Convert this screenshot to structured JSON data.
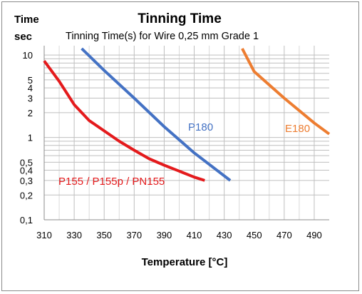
{
  "chart_data": {
    "type": "line",
    "title": "Tinning Time",
    "subtitle": "Tinning Time(s)  for Wire 0,25 mm Grade 1",
    "xlabel": "Temperature [°C]",
    "ylabel_line1": "Time",
    "ylabel_line2": "sec",
    "y_scale": "log",
    "xlim": [
      310,
      500
    ],
    "ylim": [
      0.1,
      13
    ],
    "x_ticks": [
      310,
      330,
      350,
      370,
      390,
      410,
      430,
      450,
      470,
      490
    ],
    "x_tick_labels": [
      "310",
      "330",
      "350",
      "370",
      "390",
      "410",
      "430",
      "450",
      "470",
      "490"
    ],
    "y_ticks": [
      0.1,
      0.2,
      0.3,
      0.4,
      0.5,
      1,
      2,
      3,
      4,
      5,
      10
    ],
    "y_tick_labels": [
      "0,1",
      "0,2",
      "0,3",
      "0,4",
      "0,5",
      "1",
      "2",
      "3",
      "4",
      "5",
      "10"
    ],
    "grid": true,
    "series": [
      {
        "name": "P155 / P155p / PN155",
        "color": "#e41a1c",
        "x": [
          310,
          320,
          330,
          340,
          350,
          360,
          370,
          380,
          390,
          400,
          410,
          417
        ],
        "y": [
          8.5,
          4.8,
          2.5,
          1.6,
          1.2,
          0.9,
          0.7,
          0.55,
          0.46,
          0.39,
          0.33,
          0.3
        ]
      },
      {
        "name": "P180",
        "color": "#4472c4",
        "x": [
          335,
          350,
          370,
          390,
          410,
          434
        ],
        "y": [
          12,
          6.5,
          3.0,
          1.35,
          0.65,
          0.3
        ]
      },
      {
        "name": "E180",
        "color": "#ed7d31",
        "x": [
          442,
          450,
          470,
          490,
          500
        ],
        "y": [
          12,
          6.3,
          3.0,
          1.5,
          1.1
        ]
      }
    ]
  }
}
